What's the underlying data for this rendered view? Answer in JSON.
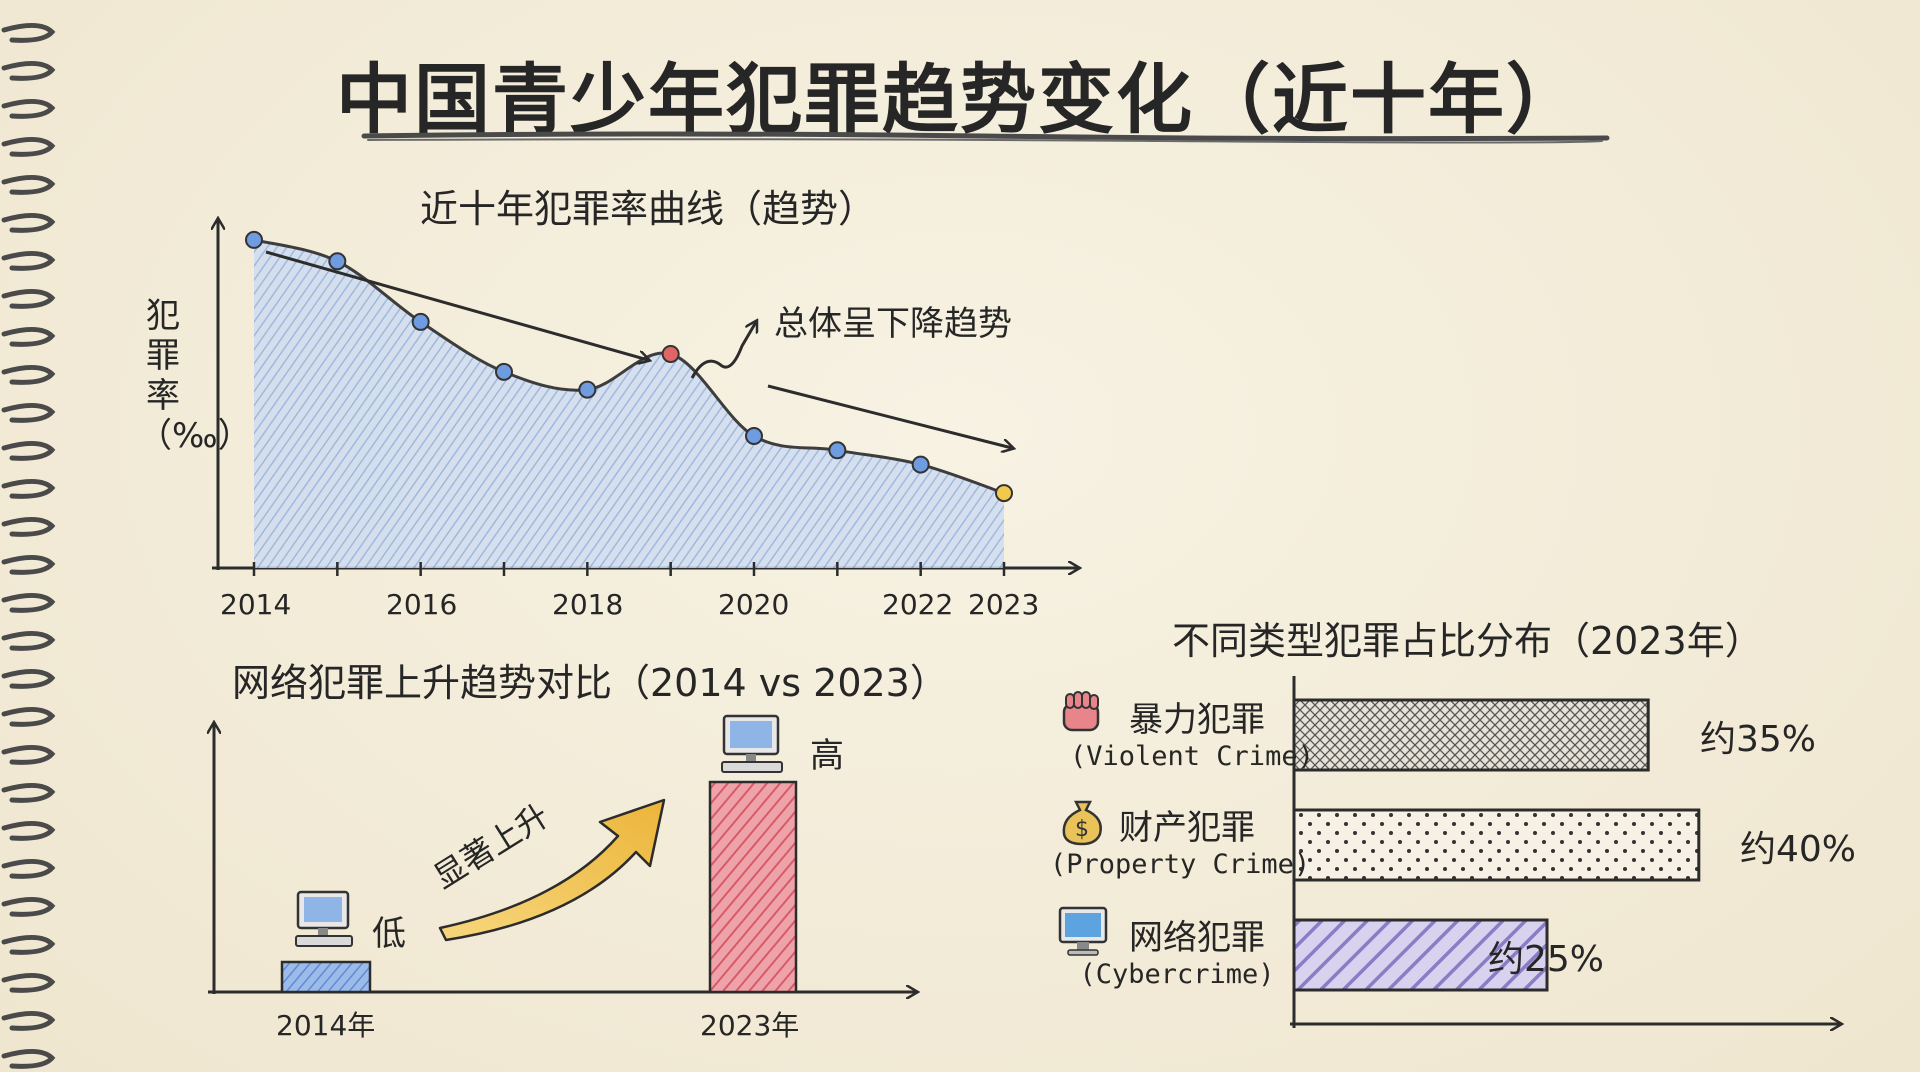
{
  "title": "中国青少年犯罪趋势变化（近十年）",
  "line_chart": {
    "subtitle": "近十年犯罪率曲线（趋势）",
    "ylabel": "犯罪率（‰）",
    "annotation": "总体呈下降趋势",
    "tick_labels": [
      "2014",
      "2016",
      "2018",
      "2020",
      "2022",
      "2023"
    ]
  },
  "compare_chart": {
    "subtitle": "网络犯罪上升趋势对比（2014 vs 2023）",
    "low_label": "低",
    "high_label": "高",
    "arrow_label": "显著上升",
    "cat_2014": "2014年",
    "cat_2023": "2023年"
  },
  "bar_chart": {
    "subtitle": "不同类型犯罪占比分布（2023年）",
    "items": [
      {
        "cn": "暴力犯罪",
        "en": "(Violent Crime)",
        "value_label": "约35%",
        "icon": "fist-icon"
      },
      {
        "cn": "财产犯罪",
        "en": "(Property Crime)",
        "value_label": "约40%",
        "icon": "money-bag-icon"
      },
      {
        "cn": "网络犯罪",
        "en": "(Cybercrime)",
        "value_label": "约25%",
        "icon": "computer-icon"
      }
    ]
  },
  "colors": {
    "area_fill": "#a9c1e6",
    "point_blue": "#6f9be0",
    "point_red": "#e06666",
    "point_yellow": "#f2c94c",
    "bar_2014": "#7fa4e0",
    "bar_2023": "#e0727c",
    "arrow_fill": "#f2c44f",
    "cyber_stripe": "#9a8bd0"
  },
  "chart_data": [
    {
      "type": "area",
      "title": "近十年犯罪率曲线（趋势）",
      "ylabel": "犯罪率（‰）",
      "x": [
        2014,
        2015,
        2016,
        2017,
        2018,
        2019,
        2020,
        2021,
        2022,
        2023
      ],
      "values": [
        9.2,
        8.6,
        6.9,
        5.5,
        5.0,
        6.0,
        3.7,
        3.3,
        2.9,
        2.1
      ],
      "ylim": [
        0,
        12
      ],
      "highlight": {
        "2019": "red",
        "2023": "yellow"
      },
      "annotation": "总体呈下降趋势",
      "grid": false
    },
    {
      "type": "bar",
      "title": "网络犯罪上升趋势对比（2014 vs 2023）",
      "categories": [
        "2014年",
        "2023年"
      ],
      "values": [
        1,
        7
      ],
      "value_labels": [
        "低",
        "高"
      ],
      "annotation": "显著上升",
      "grid": false
    },
    {
      "type": "bar",
      "orientation": "horizontal",
      "title": "不同类型犯罪占比分布（2023年）",
      "categories": [
        "暴力犯罪 (Violent Crime)",
        "财产犯罪 (Property Crime)",
        "网络犯罪 (Cybercrime)"
      ],
      "values": [
        35,
        40,
        25
      ],
      "value_labels": [
        "约35%",
        "约40%",
        "约25%"
      ],
      "xlim": [
        0,
        50
      ],
      "grid": false
    }
  ]
}
